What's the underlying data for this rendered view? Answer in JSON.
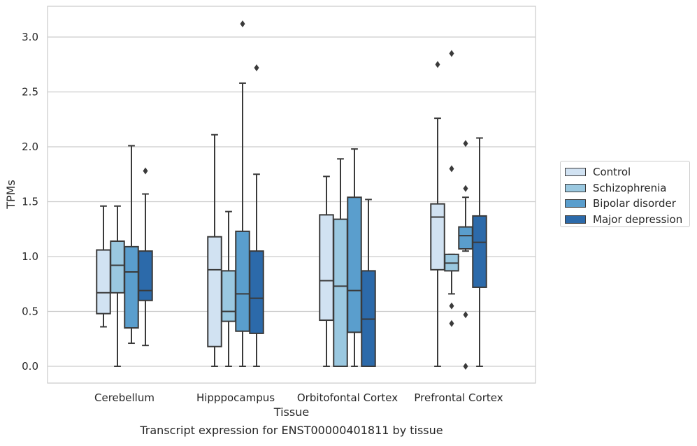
{
  "chart_data": {
    "type": "box",
    "xlabel": "Tissue",
    "ylabel": "TPMs",
    "ylim": [
      -0.15,
      3.3
    ],
    "yticks": [
      "0.0",
      "0.5",
      "1.0",
      "1.5",
      "2.0",
      "2.5",
      "3.0"
    ],
    "grid": "horizontal",
    "legend_position": "right",
    "categories": [
      "Cerebellum",
      "Hipppocampus",
      "Orbitofontal Cortex",
      "Prefrontal Cortex"
    ],
    "series": [
      {
        "name": "Control",
        "color": "#d1e2f2",
        "boxes": [
          {
            "whislo": 0.36,
            "q1": 0.48,
            "med": 0.67,
            "q3": 1.06,
            "whishi": 1.46,
            "fliers": []
          },
          {
            "whislo": 0.0,
            "q1": 0.18,
            "med": 0.88,
            "q3": 1.18,
            "whishi": 2.11,
            "fliers": []
          },
          {
            "whislo": 0.0,
            "q1": 0.42,
            "med": 0.78,
            "q3": 1.38,
            "whishi": 1.73,
            "fliers": []
          },
          {
            "whislo": 0.0,
            "q1": 0.88,
            "med": 1.36,
            "q3": 1.48,
            "whishi": 2.26,
            "fliers": [
              2.75
            ]
          }
        ]
      },
      {
        "name": "Schizophrenia",
        "color": "#9ac8e0",
        "boxes": [
          {
            "whislo": 0.0,
            "q1": 0.67,
            "med": 0.92,
            "q3": 1.14,
            "whishi": 1.46,
            "fliers": []
          },
          {
            "whislo": 0.0,
            "q1": 0.41,
            "med": 0.5,
            "q3": 0.87,
            "whishi": 1.41,
            "fliers": []
          },
          {
            "whislo": 0.0,
            "q1": 0.0,
            "med": 0.73,
            "q3": 1.34,
            "whishi": 1.89,
            "fliers": []
          },
          {
            "whislo": 0.66,
            "q1": 0.87,
            "med": 0.94,
            "q3": 1.02,
            "whishi": 1.02,
            "fliers": [
              2.85,
              1.8,
              0.55,
              0.39
            ]
          }
        ]
      },
      {
        "name": "Bipolar disorder",
        "color": "#5a9ecd",
        "boxes": [
          {
            "whislo": 0.21,
            "q1": 0.35,
            "med": 0.86,
            "q3": 1.09,
            "whishi": 2.01,
            "fliers": []
          },
          {
            "whislo": 0.0,
            "q1": 0.32,
            "med": 0.66,
            "q3": 1.23,
            "whishi": 2.58,
            "fliers": [
              3.12
            ]
          },
          {
            "whislo": 0.0,
            "q1": 0.31,
            "med": 0.69,
            "q3": 1.54,
            "whishi": 1.98,
            "fliers": []
          },
          {
            "whislo": 1.05,
            "q1": 1.07,
            "med": 1.19,
            "q3": 1.27,
            "whishi": 1.54,
            "fliers": [
              2.03,
              1.62,
              0.47,
              0.0
            ]
          }
        ]
      },
      {
        "name": "Major depression",
        "color": "#2c6aaa",
        "boxes": [
          {
            "whislo": 0.19,
            "q1": 0.6,
            "med": 0.69,
            "q3": 1.05,
            "whishi": 1.57,
            "fliers": [
              1.78
            ]
          },
          {
            "whislo": 0.0,
            "q1": 0.3,
            "med": 0.62,
            "q3": 1.05,
            "whishi": 1.75,
            "fliers": [
              2.72
            ]
          },
          {
            "whislo": 0.0,
            "q1": 0.0,
            "med": 0.43,
            "q3": 0.87,
            "whishi": 1.52,
            "fliers": []
          },
          {
            "whislo": 0.0,
            "q1": 0.72,
            "med": 1.13,
            "q3": 1.37,
            "whishi": 2.08,
            "fliers": []
          }
        ]
      }
    ]
  },
  "caption": "Transcript expression for ENST00000401811 by tissue"
}
